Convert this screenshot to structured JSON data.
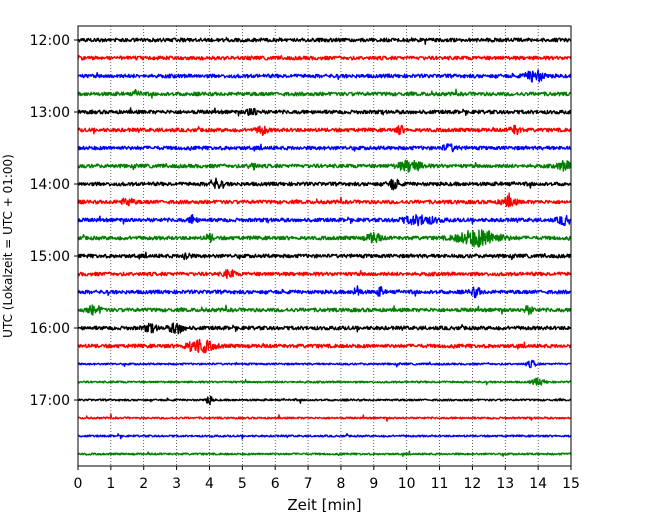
{
  "chart_data": {
    "type": "line",
    "title": "",
    "xlabel": "Zeit  [min]",
    "ylabel": "UTC (Lokalzeit = UTC + 01:00)",
    "xlim": [
      0,
      15
    ],
    "x_ticks": [
      0,
      1,
      2,
      3,
      4,
      5,
      6,
      7,
      8,
      9,
      10,
      11,
      12,
      13,
      14,
      15
    ],
    "x_tick_labels": [
      "0",
      "1",
      "2",
      "3",
      "4",
      "5",
      "6",
      "7",
      "8",
      "9",
      "10",
      "11",
      "12",
      "13",
      "14",
      "15"
    ],
    "y_tick_labels": [
      "12:00",
      "13:00",
      "14:00",
      "15:00",
      "16:00",
      "17:00"
    ],
    "grid": "vertical dotted at each minute",
    "trace_colors": [
      "#000000",
      "#ff0000",
      "#0000ff",
      "#008000"
    ],
    "traces": [
      {
        "start": "12:00",
        "color": "#000000"
      },
      {
        "start": "12:15",
        "color": "#ff0000"
      },
      {
        "start": "12:30",
        "color": "#0000ff"
      },
      {
        "start": "12:45",
        "color": "#008000"
      },
      {
        "start": "13:00",
        "color": "#000000"
      },
      {
        "start": "13:15",
        "color": "#ff0000"
      },
      {
        "start": "13:30",
        "color": "#0000ff"
      },
      {
        "start": "13:45",
        "color": "#008000"
      },
      {
        "start": "14:00",
        "color": "#000000"
      },
      {
        "start": "14:15",
        "color": "#ff0000"
      },
      {
        "start": "14:30",
        "color": "#0000ff"
      },
      {
        "start": "14:45",
        "color": "#008000"
      },
      {
        "start": "15:00",
        "color": "#000000"
      },
      {
        "start": "15:15",
        "color": "#ff0000"
      },
      {
        "start": "15:30",
        "color": "#0000ff"
      },
      {
        "start": "15:45",
        "color": "#008000"
      },
      {
        "start": "16:00",
        "color": "#000000"
      },
      {
        "start": "16:15",
        "color": "#ff0000"
      },
      {
        "start": "16:30",
        "color": "#0000ff"
      },
      {
        "start": "16:45",
        "color": "#008000"
      },
      {
        "start": "17:00",
        "color": "#000000"
      },
      {
        "start": "17:15",
        "color": "#ff0000"
      },
      {
        "start": "17:30",
        "color": "#0000ff"
      },
      {
        "start": "17:45",
        "color": "#008000"
      }
    ]
  }
}
